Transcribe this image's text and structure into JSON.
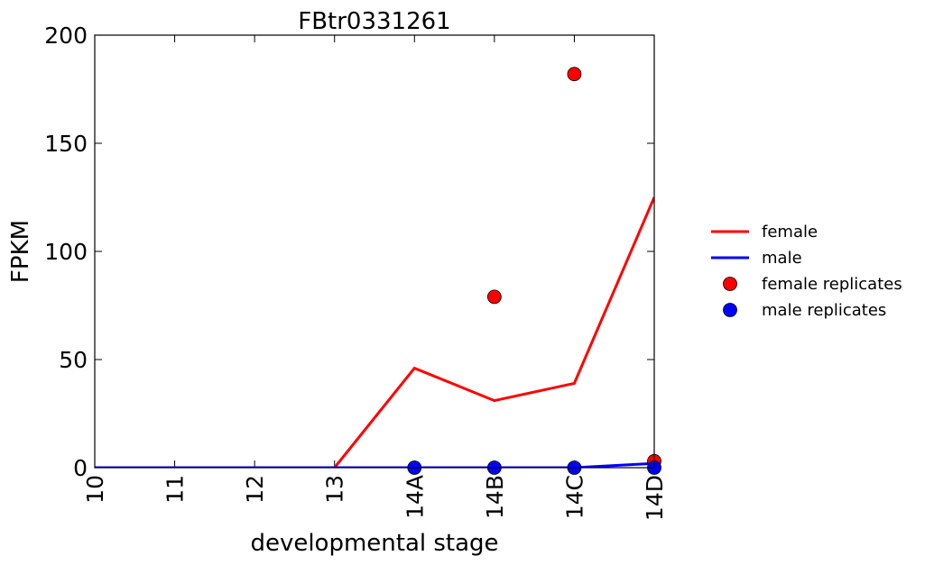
{
  "chart_data": {
    "type": "line",
    "title": "FBtr0331261",
    "xlabel": "developmental stage",
    "ylabel": "FPKM",
    "categories": [
      "10",
      "11",
      "12",
      "13",
      "14A",
      "14B",
      "14C",
      "14D"
    ],
    "ylim": [
      0,
      200
    ],
    "yticks": [
      0,
      50,
      100,
      150,
      200
    ],
    "grid": false,
    "legend_position": "right",
    "series": [
      {
        "name": "female",
        "kind": "line",
        "color": "#ff0000",
        "values": [
          0,
          0,
          0,
          0,
          46,
          31,
          39,
          125
        ]
      },
      {
        "name": "male",
        "kind": "line",
        "color": "#0000ff",
        "values": [
          0,
          0,
          0,
          0,
          0,
          0,
          0,
          2
        ]
      },
      {
        "name": "female replicates",
        "kind": "scatter",
        "color": "#ff0000",
        "points": [
          {
            "x": "14B",
            "y": 79
          },
          {
            "x": "14C",
            "y": 182
          },
          {
            "x": "14D",
            "y": 3
          }
        ]
      },
      {
        "name": "male replicates",
        "kind": "scatter",
        "color": "#0000ff",
        "points": [
          {
            "x": "14A",
            "y": 0
          },
          {
            "x": "14B",
            "y": 0
          },
          {
            "x": "14C",
            "y": 0
          },
          {
            "x": "14D",
            "y": 0
          }
        ]
      }
    ]
  }
}
